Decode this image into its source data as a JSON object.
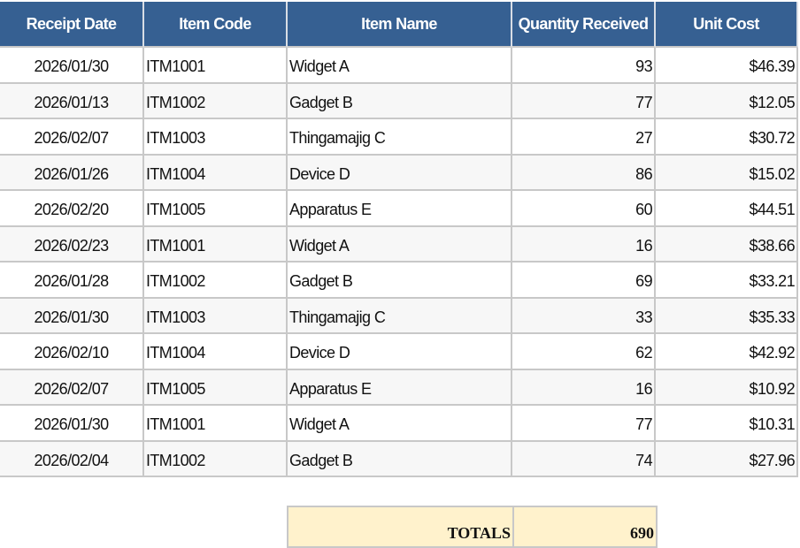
{
  "columns": [
    "Receipt Date",
    "Item Code",
    "Item Name",
    "Quantity Received",
    "Unit Cost"
  ],
  "rows": [
    [
      "2026/01/30",
      "ITM1001",
      "Widget A",
      "93",
      "$46.39"
    ],
    [
      "2026/01/13",
      "ITM1002",
      "Gadget B",
      "77",
      "$12.05"
    ],
    [
      "2026/02/07",
      "ITM1003",
      "Thingamajig C",
      "27",
      "$30.72"
    ],
    [
      "2026/01/26",
      "ITM1004",
      "Device D",
      "86",
      "$15.02"
    ],
    [
      "2026/02/20",
      "ITM1005",
      "Apparatus E",
      "60",
      "$44.51"
    ],
    [
      "2026/02/23",
      "ITM1001",
      "Widget A",
      "16",
      "$38.66"
    ],
    [
      "2026/01/28",
      "ITM1002",
      "Gadget B",
      "69",
      "$33.21"
    ],
    [
      "2026/01/30",
      "ITM1003",
      "Thingamajig C",
      "33",
      "$35.33"
    ],
    [
      "2026/02/10",
      "ITM1004",
      "Device D",
      "62",
      "$42.92"
    ],
    [
      "2026/02/07",
      "ITM1005",
      "Apparatus E",
      "16",
      "$10.92"
    ],
    [
      "2026/01/30",
      "ITM1001",
      "Widget A",
      "77",
      "$10.31"
    ],
    [
      "2026/02/04",
      "ITM1002",
      "Gadget B",
      "74",
      "$27.96"
    ]
  ],
  "totals": {
    "label": "TOTALS",
    "quantity": "690"
  },
  "colors": {
    "header_bg": "#366092",
    "header_text": "#ffffff",
    "totals_bg": "#fff2cc",
    "grid": "#c8c8c8"
  }
}
